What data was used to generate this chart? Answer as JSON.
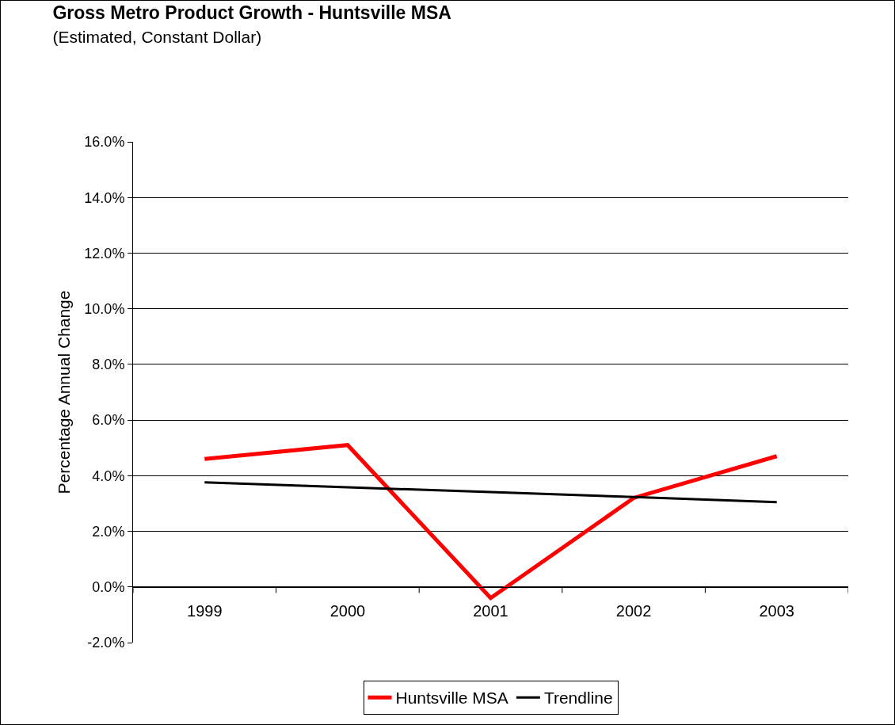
{
  "chart_data": {
    "type": "line",
    "title": "Gross Metro Product Growth - Huntsville MSA",
    "subtitle": "(Estimated, Constant Dollar)",
    "ylabel": "Percentage Annual Change",
    "categories": [
      "1999",
      "2000",
      "2001",
      "2002",
      "2003"
    ],
    "series": [
      {
        "name": "Huntsville MSA",
        "color": "#ff0000",
        "values": [
          4.6,
          5.1,
          -0.4,
          3.2,
          4.7
        ]
      },
      {
        "name": "Trendline",
        "color": "#000000",
        "values": [
          3.76,
          3.58,
          3.41,
          3.23,
          3.05
        ]
      }
    ],
    "ylim": [
      -2,
      16
    ],
    "yticks": [
      {
        "value": -2,
        "label": "-2.0%"
      },
      {
        "value": 0,
        "label": "0.0%"
      },
      {
        "value": 2,
        "label": "2.0%"
      },
      {
        "value": 4,
        "label": "4.0%"
      },
      {
        "value": 6,
        "label": "6.0%"
      },
      {
        "value": 8,
        "label": "8.0%"
      },
      {
        "value": 10,
        "label": "10.0%"
      },
      {
        "value": 12,
        "label": "12.0%"
      },
      {
        "value": 14,
        "label": "14.0%"
      },
      {
        "value": 16,
        "label": "16.0%"
      }
    ],
    "grid": "y",
    "legend": "bottom",
    "marker": "none",
    "line_style": "solid"
  }
}
